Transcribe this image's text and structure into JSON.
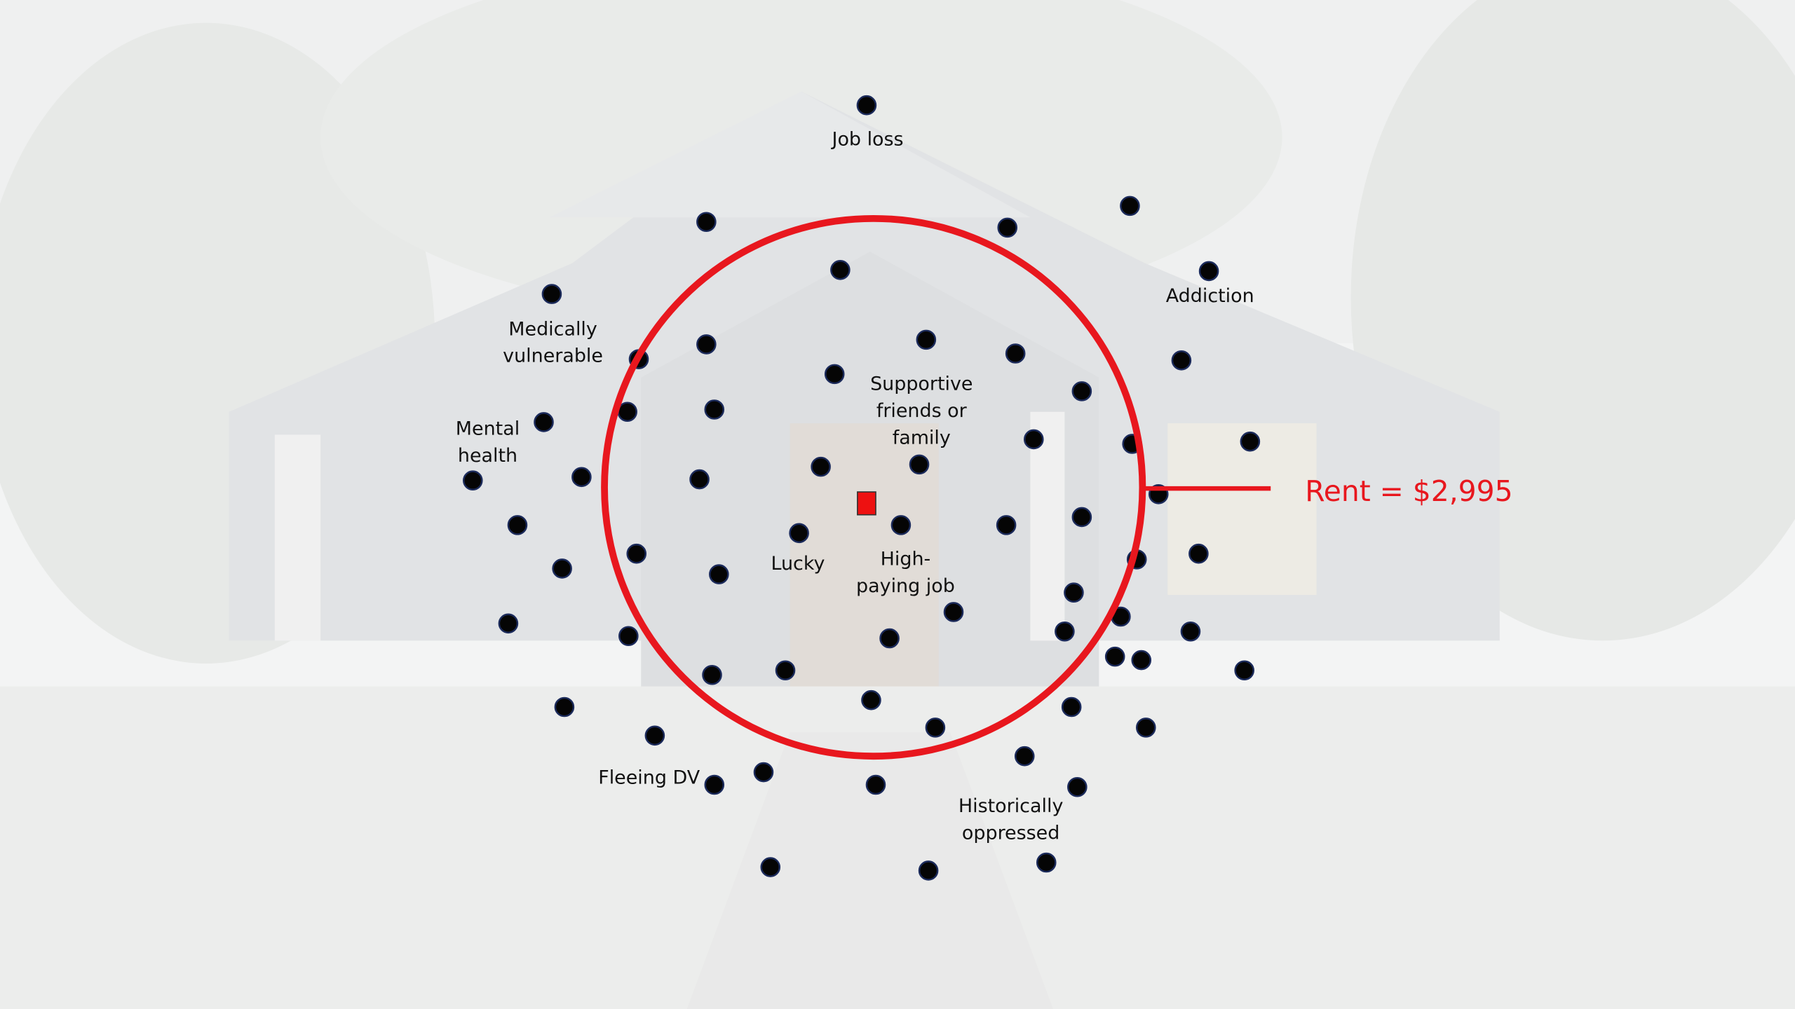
{
  "labels": [
    {
      "lines": [
        "Job loss"
      ]
    },
    {
      "lines": [
        "Addiction"
      ]
    },
    {
      "lines": [
        "Medically",
        "vulnerable"
      ]
    },
    {
      "lines": [
        "Mental",
        "health"
      ]
    },
    {
      "lines": [
        "Supportive",
        "friends or",
        "family"
      ]
    },
    {
      "lines": [
        "Lucky"
      ]
    },
    {
      "lines": [
        "High-",
        "paying job"
      ]
    },
    {
      "lines": [
        "Fleeing DV"
      ]
    },
    {
      "lines": [
        "Historically",
        "oppressed"
      ]
    }
  ],
  "rent_label": "Rent = $2,995"
}
